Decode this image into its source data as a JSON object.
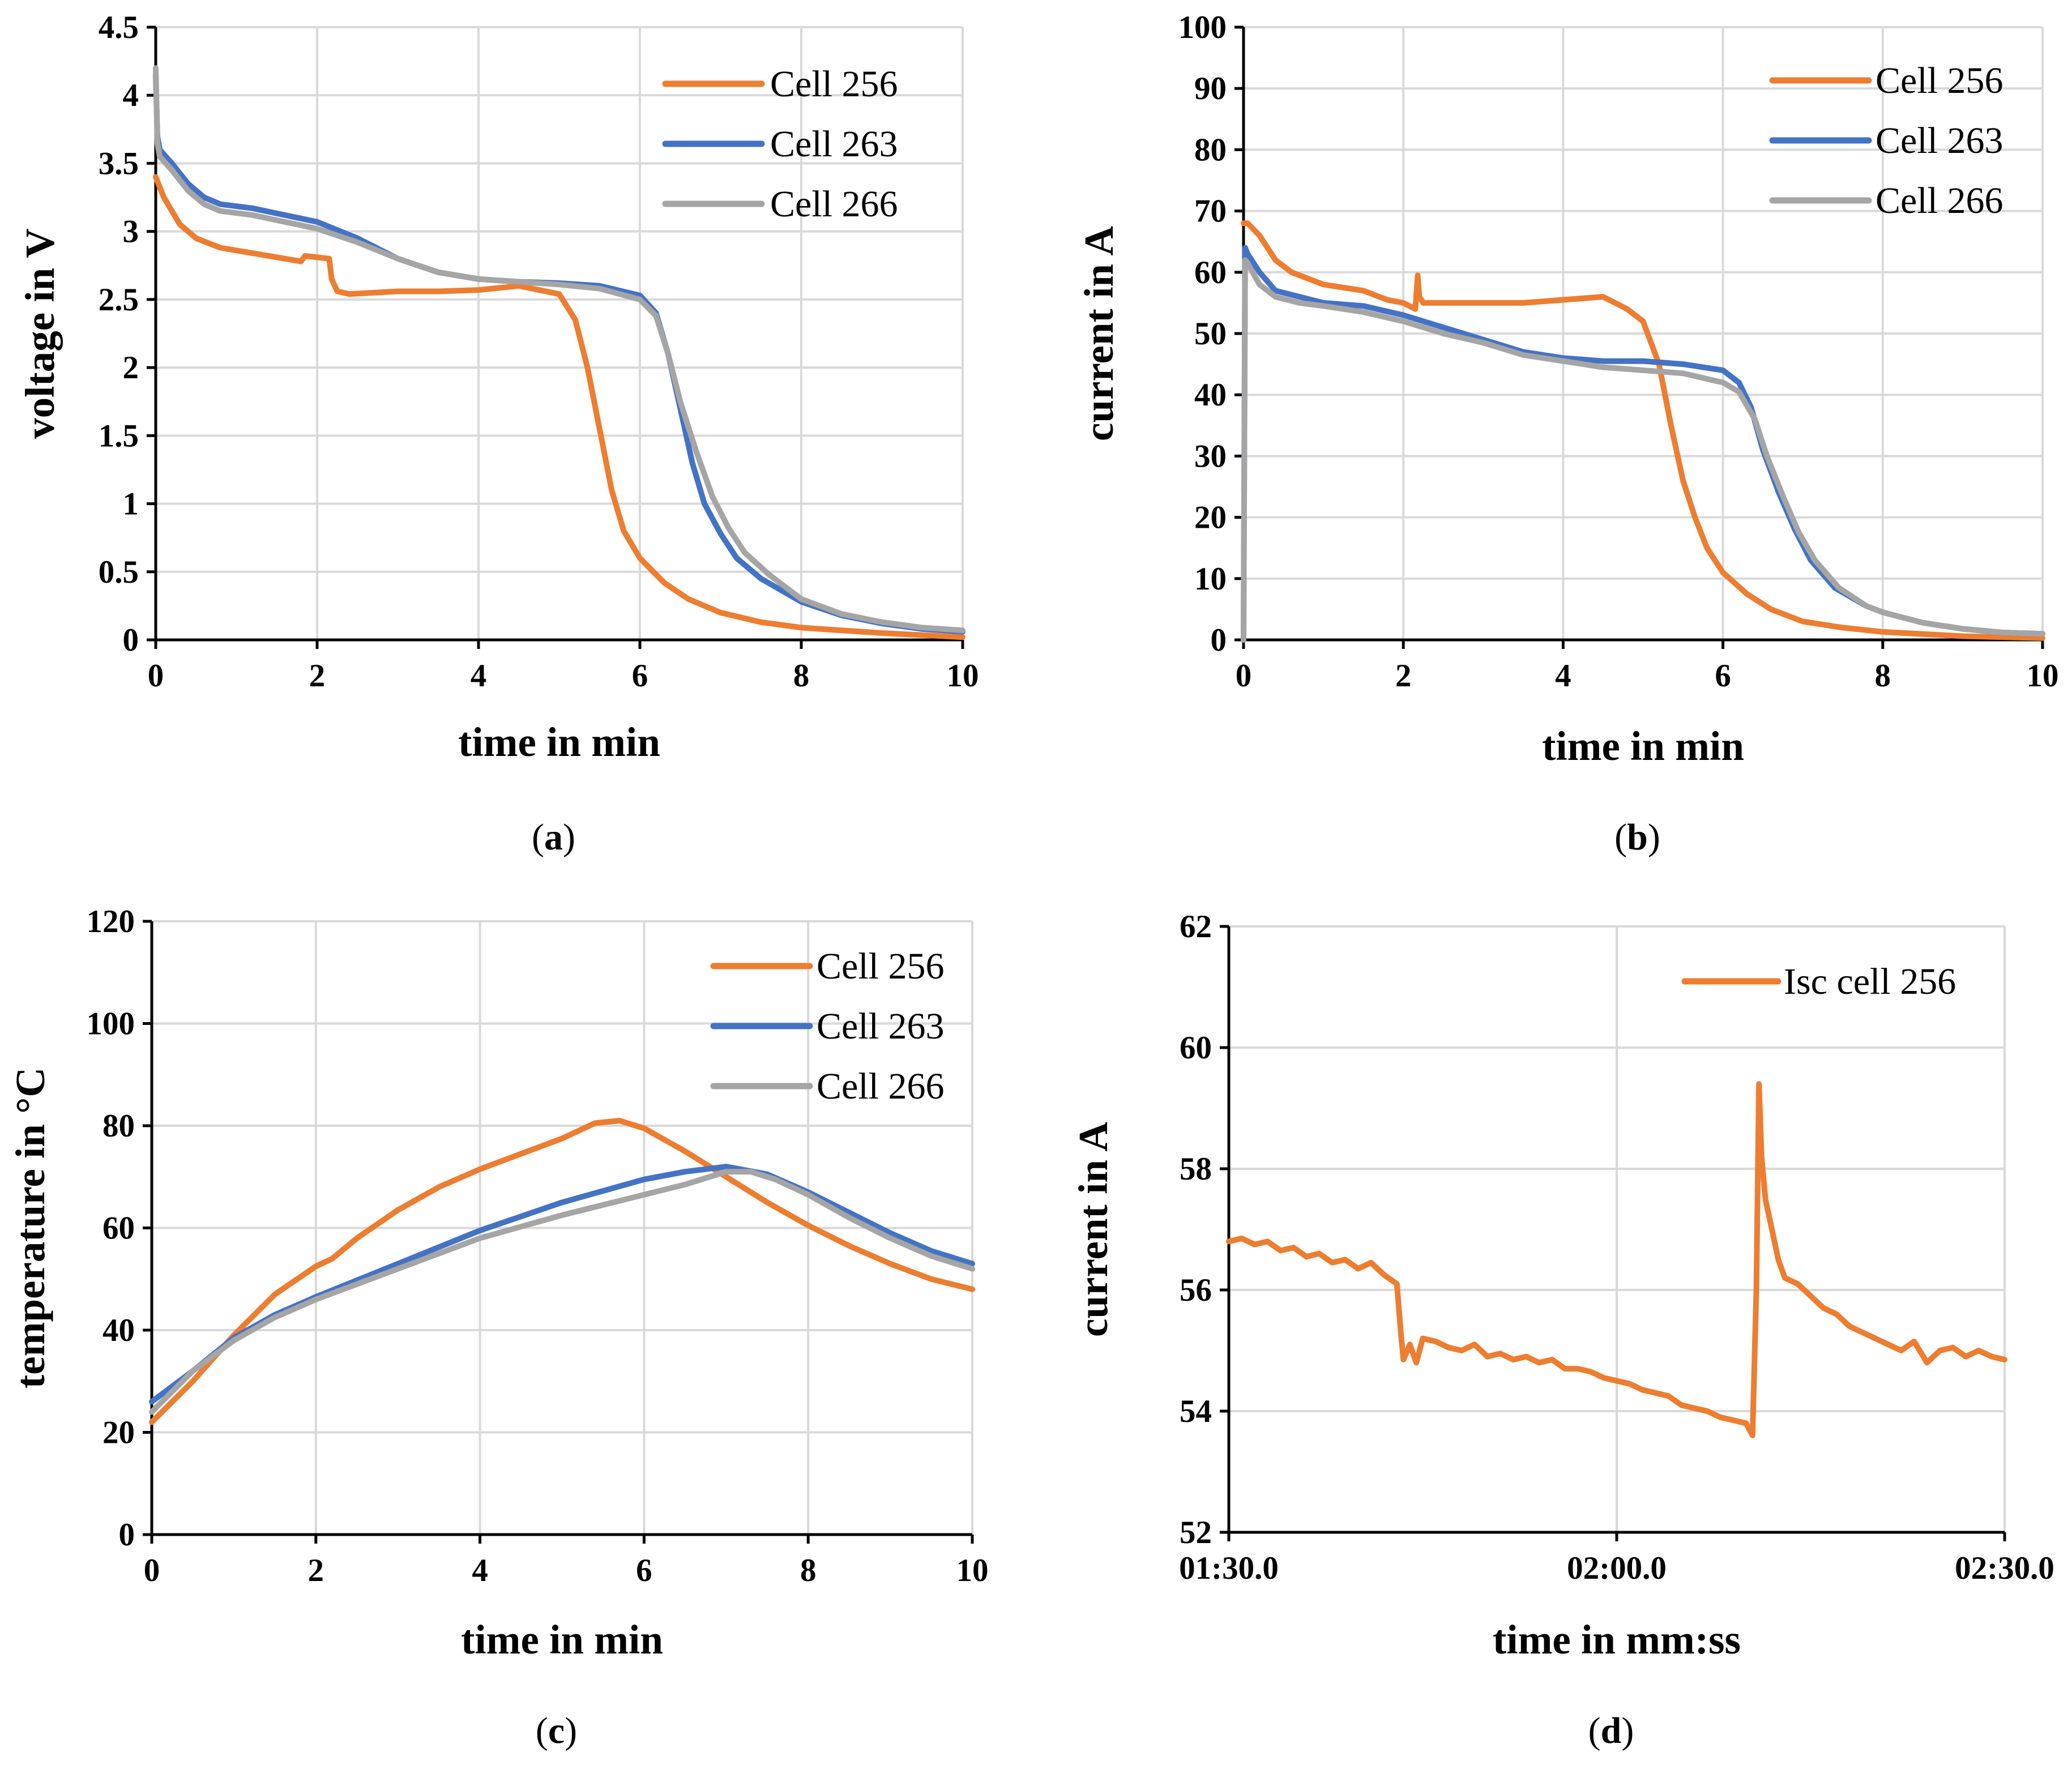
{
  "colors": {
    "cell_256": "#ed7d31",
    "cell_263": "#4472c4",
    "cell_266": "#a5a5a5"
  },
  "chart_data": [
    {
      "id": "a",
      "type": "line",
      "panel_label": "a",
      "xlabel": "time in min",
      "ylabel": "voltage in V",
      "xlim": [
        0,
        10
      ],
      "ylim": [
        0,
        4.5
      ],
      "xticks": [
        0,
        2,
        4,
        6,
        8,
        10
      ],
      "xtick_labels": [
        "0",
        "2",
        "4",
        "6",
        "8",
        "10"
      ],
      "yticks": [
        0,
        0.5,
        1,
        1.5,
        2,
        2.5,
        3,
        3.5,
        4,
        4.5
      ],
      "ytick_labels": [
        "0",
        "0.5",
        "1",
        "1.5",
        "2",
        "2.5",
        "3",
        "3.5",
        "4",
        "4.5"
      ],
      "grid": true,
      "legend_position": "top-right",
      "series": [
        {
          "name": "Cell 256",
          "color": "#ed7d31",
          "x": [
            0,
            0.1,
            0.3,
            0.5,
            0.8,
            1.2,
            1.6,
            1.8,
            1.85,
            2.0,
            2.15,
            2.18,
            2.25,
            2.4,
            3.0,
            3.5,
            4.0,
            4.5,
            5.0,
            5.2,
            5.35,
            5.5,
            5.65,
            5.8,
            6.0,
            6.3,
            6.6,
            7.0,
            7.5,
            8.0,
            8.5,
            9.0,
            10.0
          ],
          "values": [
            3.4,
            3.25,
            3.05,
            2.95,
            2.88,
            2.84,
            2.8,
            2.78,
            2.82,
            2.81,
            2.8,
            2.65,
            2.56,
            2.54,
            2.56,
            2.56,
            2.57,
            2.6,
            2.54,
            2.35,
            2.0,
            1.55,
            1.1,
            0.8,
            0.6,
            0.42,
            0.3,
            0.2,
            0.13,
            0.09,
            0.07,
            0.05,
            0.02
          ]
        },
        {
          "name": "Cell 263",
          "color": "#4472c4",
          "x": [
            0,
            0.02,
            0.05,
            0.2,
            0.4,
            0.6,
            0.8,
            1.2,
            2.0,
            2.5,
            3.0,
            3.5,
            4.0,
            4.5,
            5.0,
            5.5,
            6.0,
            6.2,
            6.35,
            6.5,
            6.65,
            6.8,
            7.0,
            7.2,
            7.5,
            8.0,
            8.5,
            9.0,
            9.5,
            10.0
          ],
          "values": [
            4.15,
            3.7,
            3.6,
            3.5,
            3.35,
            3.25,
            3.2,
            3.17,
            3.07,
            2.95,
            2.8,
            2.7,
            2.65,
            2.63,
            2.62,
            2.6,
            2.53,
            2.4,
            2.1,
            1.7,
            1.3,
            1.0,
            0.78,
            0.6,
            0.45,
            0.28,
            0.18,
            0.12,
            0.08,
            0.06
          ]
        },
        {
          "name": "Cell 266",
          "color": "#a5a5a5",
          "x": [
            0,
            0.02,
            0.05,
            0.2,
            0.4,
            0.6,
            0.8,
            1.2,
            2.0,
            2.5,
            3.0,
            3.5,
            4.0,
            4.5,
            5.0,
            5.5,
            6.0,
            6.2,
            6.35,
            6.5,
            6.7,
            6.9,
            7.1,
            7.3,
            7.6,
            8.0,
            8.5,
            9.0,
            9.5,
            10.0
          ],
          "values": [
            4.2,
            3.65,
            3.55,
            3.45,
            3.3,
            3.2,
            3.15,
            3.12,
            3.02,
            2.92,
            2.8,
            2.7,
            2.65,
            2.63,
            2.61,
            2.58,
            2.5,
            2.38,
            2.1,
            1.75,
            1.38,
            1.05,
            0.82,
            0.64,
            0.48,
            0.3,
            0.19,
            0.13,
            0.09,
            0.07
          ]
        }
      ]
    },
    {
      "id": "b",
      "type": "line",
      "panel_label": "b",
      "xlabel": "time in min",
      "ylabel": "current in A",
      "xlim": [
        0,
        10
      ],
      "ylim": [
        0,
        100
      ],
      "xticks": [
        0,
        2,
        4,
        6,
        8,
        10
      ],
      "xtick_labels": [
        "0",
        "2",
        "4",
        "6",
        "8",
        "10"
      ],
      "yticks": [
        0,
        10,
        20,
        30,
        40,
        50,
        60,
        70,
        80,
        90,
        100
      ],
      "ytick_labels": [
        "0",
        "10",
        "20",
        "30",
        "40",
        "50",
        "60",
        "70",
        "80",
        "90",
        "100"
      ],
      "grid": true,
      "legend_position": "top-right",
      "series": [
        {
          "name": "Cell 256",
          "color": "#ed7d31",
          "x": [
            0,
            0.05,
            0.2,
            0.4,
            0.6,
            1.0,
            1.5,
            1.8,
            2.0,
            2.15,
            2.18,
            2.2,
            2.25,
            2.4,
            3.0,
            3.5,
            4.0,
            4.5,
            4.8,
            5.0,
            5.2,
            5.35,
            5.5,
            5.65,
            5.8,
            6.0,
            6.3,
            6.6,
            7.0,
            7.5,
            8.0,
            9.0,
            10.0
          ],
          "values": [
            68,
            68,
            66,
            62,
            60,
            58,
            57,
            55.5,
            55,
            54,
            59.5,
            56,
            55,
            55,
            55,
            55,
            55.5,
            56,
            54,
            52,
            45,
            35,
            26,
            20,
            15,
            11,
            7.5,
            5,
            3,
            2,
            1.3,
            0.6,
            0.3
          ]
        },
        {
          "name": "Cell 263",
          "color": "#4472c4",
          "x": [
            0,
            0.02,
            0.05,
            0.2,
            0.4,
            0.7,
            1.0,
            1.5,
            2.0,
            2.5,
            3.0,
            3.5,
            4.0,
            4.5,
            5.0,
            5.5,
            6.0,
            6.2,
            6.35,
            6.5,
            6.7,
            6.9,
            7.1,
            7.4,
            7.8,
            8.0,
            8.5,
            9.0,
            9.5,
            10.0
          ],
          "values": [
            0,
            64,
            63,
            60,
            57,
            56,
            55,
            54.5,
            53,
            51,
            49,
            47,
            46,
            45.5,
            45.5,
            45,
            44,
            42,
            38,
            31,
            24,
            18,
            13,
            8.5,
            5.5,
            4.5,
            2.8,
            1.8,
            1.2,
            1.0
          ]
        },
        {
          "name": "Cell 266",
          "color": "#a5a5a5",
          "x": [
            0,
            0.02,
            0.05,
            0.2,
            0.4,
            0.7,
            1.0,
            1.5,
            2.0,
            2.5,
            3.0,
            3.5,
            4.0,
            4.5,
            5.0,
            5.5,
            6.0,
            6.2,
            6.4,
            6.55,
            6.75,
            6.95,
            7.15,
            7.45,
            7.8,
            8.0,
            8.5,
            9.0,
            9.5,
            10.0
          ],
          "values": [
            0,
            62,
            61.5,
            58,
            56,
            55,
            54.5,
            53.5,
            52,
            50,
            48.5,
            46.5,
            45.5,
            44.5,
            44,
            43.5,
            42,
            40.5,
            36,
            30,
            23.5,
            17.5,
            13,
            8.5,
            5.5,
            4.5,
            2.8,
            1.8,
            1.2,
            1.0
          ]
        }
      ]
    },
    {
      "id": "c",
      "type": "line",
      "panel_label": "c",
      "xlabel": "time in min",
      "ylabel": "temperature in °C",
      "xlim": [
        0,
        10
      ],
      "ylim": [
        0,
        120
      ],
      "xticks": [
        0,
        2,
        4,
        6,
        8,
        10
      ],
      "xtick_labels": [
        "0",
        "2",
        "4",
        "6",
        "8",
        "10"
      ],
      "yticks": [
        0,
        20,
        40,
        60,
        80,
        100,
        120
      ],
      "ytick_labels": [
        "0",
        "20",
        "40",
        "60",
        "80",
        "100",
        "120"
      ],
      "grid": true,
      "legend_position": "top-right",
      "series": [
        {
          "name": "Cell 256",
          "color": "#ed7d31",
          "x": [
            0,
            0.5,
            1.0,
            1.5,
            2.0,
            2.2,
            2.5,
            3.0,
            3.5,
            4.0,
            4.5,
            5.0,
            5.4,
            5.7,
            6.0,
            6.5,
            7.0,
            7.5,
            8.0,
            8.5,
            9.0,
            9.5,
            10.0
          ],
          "values": [
            22,
            30,
            39,
            47,
            52.5,
            54,
            58,
            63.5,
            68,
            71.5,
            74.5,
            77.5,
            80.5,
            81,
            79.5,
            75,
            70,
            65,
            60.5,
            56.5,
            53,
            50,
            48
          ]
        },
        {
          "name": "Cell 263",
          "color": "#4472c4",
          "x": [
            0,
            0.5,
            1.0,
            1.5,
            2.0,
            3.0,
            4.0,
            5.0,
            6.0,
            6.5,
            7.0,
            7.5,
            8.0,
            8.5,
            9.0,
            9.5,
            10.0
          ],
          "values": [
            26,
            32,
            38.5,
            43,
            46.5,
            53,
            59.5,
            65,
            69.5,
            71,
            72,
            70.5,
            67,
            63,
            59,
            55.5,
            53
          ]
        },
        {
          "name": "Cell 266",
          "color": "#a5a5a5",
          "x": [
            0,
            0.5,
            1.0,
            1.5,
            2.0,
            3.0,
            4.0,
            5.0,
            6.0,
            6.5,
            7.0,
            7.3,
            7.6,
            8.0,
            8.5,
            9.0,
            9.5,
            10.0
          ],
          "values": [
            24,
            32,
            38,
            42.5,
            46,
            52,
            58,
            62.5,
            66.5,
            68.5,
            71,
            71,
            69.5,
            66.5,
            62,
            58,
            54.5,
            52
          ]
        }
      ]
    },
    {
      "id": "d",
      "type": "line",
      "panel_label": "d",
      "xlabel": "time in mm:ss",
      "ylabel": "current in A",
      "xlim": [
        90,
        150
      ],
      "ylim": [
        52,
        62
      ],
      "xticks": [
        90,
        120,
        150
      ],
      "xtick_labels": [
        "01:30.0",
        "02:00.0",
        "02:30.0"
      ],
      "yticks": [
        52,
        54,
        56,
        58,
        60,
        62
      ],
      "ytick_labels": [
        "52",
        "54",
        "56",
        "58",
        "60",
        "62"
      ],
      "grid": true,
      "legend_position": "top-right",
      "series": [
        {
          "name": "Isc cell 256",
          "color": "#ed7d31",
          "x": [
            90,
            91,
            92,
            93,
            94,
            95,
            96,
            97,
            98,
            99,
            100,
            101,
            102,
            103,
            103.3,
            103.5,
            104,
            104.5,
            105,
            106,
            107,
            108,
            109,
            110,
            111,
            112,
            113,
            114,
            115,
            116,
            117,
            118,
            119,
            120,
            121,
            122,
            123,
            124,
            125,
            126,
            127,
            128,
            129,
            130,
            130.5,
            130.8,
            131,
            131.2,
            131.5,
            132,
            132.5,
            133,
            134,
            135,
            136,
            137,
            138,
            139,
            140,
            141,
            142,
            143,
            144,
            145,
            146,
            147,
            148,
            149,
            150
          ],
          "values": [
            56.8,
            56.85,
            56.75,
            56.8,
            56.65,
            56.7,
            56.55,
            56.6,
            56.45,
            56.5,
            56.35,
            56.45,
            56.25,
            56.1,
            55.3,
            54.85,
            55.1,
            54.8,
            55.2,
            55.15,
            55.05,
            55.0,
            55.1,
            54.9,
            54.95,
            54.85,
            54.9,
            54.8,
            54.85,
            54.7,
            54.7,
            54.65,
            54.55,
            54.5,
            54.45,
            54.35,
            54.3,
            54.25,
            54.1,
            54.05,
            54.0,
            53.9,
            53.85,
            53.8,
            53.6,
            56.0,
            59.4,
            58.2,
            57.5,
            57.0,
            56.5,
            56.2,
            56.1,
            55.9,
            55.7,
            55.6,
            55.4,
            55.3,
            55.2,
            55.1,
            55.0,
            55.15,
            54.8,
            55.0,
            55.05,
            54.9,
            55.0,
            54.9,
            54.85
          ]
        }
      ]
    }
  ]
}
